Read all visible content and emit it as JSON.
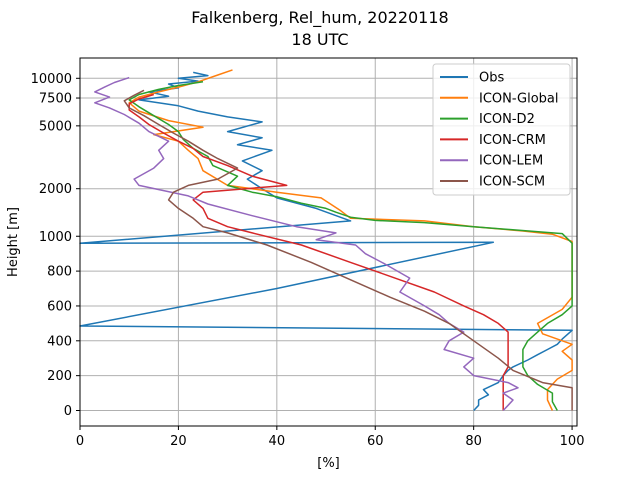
{
  "chart_data": {
    "type": "line",
    "title": "Falkenberg, Rel_hum, 20220118",
    "subtitle": "18 UTC",
    "xlabel": "[%]",
    "ylabel": "Height [m]",
    "xlim": [
      0,
      101
    ],
    "x_ticks": [
      0,
      20,
      40,
      60,
      80,
      100
    ],
    "y_ticks_linear": [
      0,
      200,
      400,
      600,
      800,
      1000
    ],
    "y_ticks_log": [
      2000,
      5000,
      7500,
      10000
    ],
    "grid": true,
    "legend_position": "top-right",
    "series": [
      {
        "name": "Obs",
        "color": "#1f77b4",
        "points": [
          [
            80,
            0
          ],
          [
            81,
            30
          ],
          [
            81,
            60
          ],
          [
            83,
            90
          ],
          [
            82,
            120
          ],
          [
            85,
            160
          ],
          [
            86,
            200
          ],
          [
            87,
            230
          ],
          [
            88,
            250
          ],
          [
            91,
            290
          ],
          [
            93,
            320
          ],
          [
            95,
            350
          ],
          [
            97,
            380
          ],
          [
            98,
            410
          ],
          [
            100,
            460
          ],
          [
            0,
            485
          ],
          [
            40,
            700
          ],
          [
            84,
            965
          ],
          [
            0,
            960
          ],
          [
            55,
            1250
          ],
          [
            48,
            1500
          ],
          [
            40,
            1750
          ],
          [
            37,
            2000
          ],
          [
            34,
            2300
          ],
          [
            37,
            2600
          ],
          [
            33,
            3000
          ],
          [
            39,
            3500
          ],
          [
            32,
            3800
          ],
          [
            37,
            4200
          ],
          [
            30,
            4600
          ],
          [
            37,
            5300
          ],
          [
            30,
            5700
          ],
          [
            24,
            6200
          ],
          [
            20,
            6700
          ],
          [
            12,
            7300
          ],
          [
            18,
            7700
          ],
          [
            14,
            8200
          ],
          [
            20,
            8700
          ],
          [
            18,
            9200
          ],
          [
            24,
            9600
          ],
          [
            20,
            10000
          ],
          [
            26,
            10400
          ],
          [
            23,
            10900
          ]
        ]
      },
      {
        "name": "ICON-Global",
        "color": "#ff7f0e",
        "points": [
          [
            96,
            0
          ],
          [
            95,
            60
          ],
          [
            95,
            120
          ],
          [
            97,
            180
          ],
          [
            100,
            230
          ],
          [
            100,
            290
          ],
          [
            98,
            340
          ],
          [
            100,
            380
          ],
          [
            94,
            440
          ],
          [
            93,
            500
          ],
          [
            98,
            580
          ],
          [
            100,
            650
          ],
          [
            100,
            750
          ],
          [
            100,
            870
          ],
          [
            100,
            970
          ],
          [
            96,
            1030
          ],
          [
            90,
            1080
          ],
          [
            80,
            1150
          ],
          [
            70,
            1250
          ],
          [
            55,
            1300
          ],
          [
            53,
            1450
          ],
          [
            49,
            1750
          ],
          [
            40,
            1900
          ],
          [
            30,
            2100
          ],
          [
            25,
            2600
          ],
          [
            24,
            3100
          ],
          [
            22,
            3500
          ],
          [
            20,
            4000
          ],
          [
            15,
            4400
          ],
          [
            25,
            4900
          ],
          [
            18,
            5400
          ],
          [
            12,
            6200
          ],
          [
            10,
            7000
          ],
          [
            12,
            7600
          ],
          [
            16,
            8200
          ],
          [
            20,
            8800
          ],
          [
            24,
            9500
          ],
          [
            28,
            10500
          ],
          [
            31,
            11300
          ]
        ]
      },
      {
        "name": "ICON-D2",
        "color": "#2ca02c",
        "points": [
          [
            97,
            0
          ],
          [
            96,
            50
          ],
          [
            96,
            100
          ],
          [
            93,
            150
          ],
          [
            91,
            200
          ],
          [
            90,
            250
          ],
          [
            90,
            300
          ],
          [
            90,
            350
          ],
          [
            91,
            400
          ],
          [
            93,
            450
          ],
          [
            95,
            500
          ],
          [
            98,
            550
          ],
          [
            100,
            600
          ],
          [
            100,
            700
          ],
          [
            100,
            800
          ],
          [
            100,
            900
          ],
          [
            100,
            960
          ],
          [
            98,
            1040
          ],
          [
            80,
            1150
          ],
          [
            70,
            1220
          ],
          [
            60,
            1260
          ],
          [
            55,
            1320
          ],
          [
            52,
            1420
          ],
          [
            50,
            1500
          ],
          [
            45,
            1620
          ],
          [
            40,
            1780
          ],
          [
            35,
            1900
          ],
          [
            30,
            2100
          ],
          [
            32,
            2400
          ],
          [
            27,
            2800
          ],
          [
            26,
            3200
          ],
          [
            23,
            3600
          ],
          [
            21,
            4100
          ],
          [
            20,
            4600
          ],
          [
            18,
            5100
          ],
          [
            15,
            5800
          ],
          [
            12,
            6600
          ],
          [
            10,
            7300
          ],
          [
            12,
            7900
          ],
          [
            16,
            8500
          ],
          [
            20,
            9000
          ],
          [
            25,
            9500
          ]
        ]
      },
      {
        "name": "ICON-CRM",
        "color": "#d62728",
        "points": [
          [
            86,
            0
          ],
          [
            86,
            50
          ],
          [
            86,
            100
          ],
          [
            86,
            150
          ],
          [
            86,
            200
          ],
          [
            87,
            250
          ],
          [
            87,
            300
          ],
          [
            87,
            350
          ],
          [
            87,
            400
          ],
          [
            87,
            450
          ],
          [
            85,
            500
          ],
          [
            82,
            550
          ],
          [
            78,
            600
          ],
          [
            72,
            680
          ],
          [
            65,
            750
          ],
          [
            55,
            850
          ],
          [
            45,
            950
          ],
          [
            35,
            1050
          ],
          [
            30,
            1150
          ],
          [
            26,
            1300
          ],
          [
            25,
            1500
          ],
          [
            23,
            1700
          ],
          [
            25,
            1900
          ],
          [
            42,
            2100
          ],
          [
            35,
            2400
          ],
          [
            30,
            2800
          ],
          [
            25,
            3200
          ],
          [
            23,
            3600
          ],
          [
            20,
            4000
          ],
          [
            17,
            4500
          ],
          [
            14,
            5100
          ],
          [
            12,
            5700
          ],
          [
            10,
            6300
          ],
          [
            10,
            6900
          ],
          [
            12,
            7400
          ],
          [
            15,
            7900
          ]
        ]
      },
      {
        "name": "ICON-LEM",
        "color": "#9467bd",
        "points": [
          [
            86,
            0
          ],
          [
            87,
            30
          ],
          [
            88,
            60
          ],
          [
            86,
            100
          ],
          [
            89,
            130
          ],
          [
            87,
            160
          ],
          [
            80,
            200
          ],
          [
            78,
            250
          ],
          [
            80,
            300
          ],
          [
            74,
            350
          ],
          [
            75,
            400
          ],
          [
            78,
            450
          ],
          [
            75,
            500
          ],
          [
            73,
            550
          ],
          [
            70,
            600
          ],
          [
            65,
            680
          ],
          [
            67,
            760
          ],
          [
            62,
            840
          ],
          [
            58,
            900
          ],
          [
            56,
            950
          ],
          [
            48,
            980
          ],
          [
            52,
            1050
          ],
          [
            44,
            1150
          ],
          [
            35,
            1350
          ],
          [
            26,
            1600
          ],
          [
            22,
            1800
          ],
          [
            12,
            2100
          ],
          [
            11,
            2300
          ],
          [
            15,
            2700
          ],
          [
            17,
            3100
          ],
          [
            16,
            3500
          ],
          [
            18,
            4000
          ],
          [
            14,
            4600
          ],
          [
            12,
            5200
          ],
          [
            9,
            5900
          ],
          [
            6,
            6500
          ],
          [
            3,
            7000
          ],
          [
            6,
            7600
          ],
          [
            3,
            8200
          ],
          [
            5,
            8800
          ],
          [
            7,
            9400
          ],
          [
            10,
            10100
          ]
        ]
      },
      {
        "name": "ICON-SCM",
        "color": "#8c564b",
        "points": [
          [
            100,
            0
          ],
          [
            100,
            50
          ],
          [
            100,
            100
          ],
          [
            100,
            130
          ],
          [
            94,
            160
          ],
          [
            88,
            230
          ],
          [
            85,
            300
          ],
          [
            80,
            400
          ],
          [
            75,
            500
          ],
          [
            70,
            570
          ],
          [
            63,
            650
          ],
          [
            55,
            750
          ],
          [
            47,
            850
          ],
          [
            38,
            950
          ],
          [
            30,
            1050
          ],
          [
            25,
            1150
          ],
          [
            23,
            1300
          ],
          [
            20,
            1500
          ],
          [
            18,
            1700
          ],
          [
            19,
            1900
          ],
          [
            22,
            2100
          ],
          [
            28,
            2300
          ],
          [
            32,
            2700
          ],
          [
            28,
            3100
          ],
          [
            25,
            3500
          ],
          [
            22,
            4000
          ],
          [
            19,
            4500
          ],
          [
            16,
            5100
          ],
          [
            13,
            5800
          ],
          [
            10,
            6500
          ],
          [
            9,
            7200
          ],
          [
            11,
            7800
          ],
          [
            13,
            8400
          ]
        ]
      }
    ]
  }
}
